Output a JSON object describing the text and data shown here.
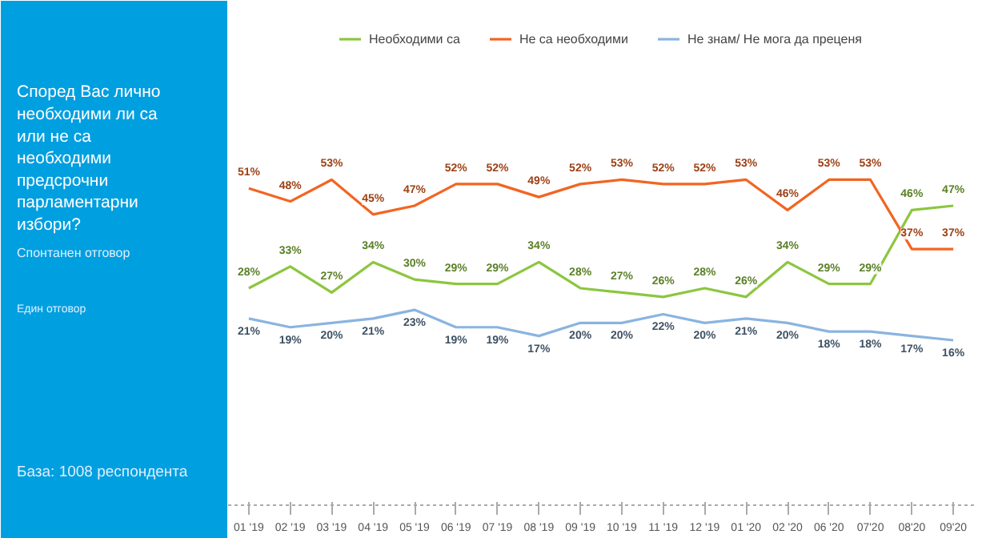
{
  "chart_data": {
    "type": "line",
    "title": "Според Вас лично необходими ли са или не са необходими предсрочни парламентарни избори?",
    "annotations": [
      "Спонтанен отговор",
      "Един отговор",
      "База: 1008 респондента"
    ],
    "categories": [
      "01 '19",
      "02 '19",
      "03 '19",
      "04 '19",
      "05 '19",
      "06 '19",
      "07 '19",
      "08 '19",
      "09 '19",
      "10 '19",
      "11 '19",
      "12 '19",
      "01 '20",
      "02 '20",
      "06 '20",
      "07'20",
      "08'20",
      "09'20"
    ],
    "series": [
      {
        "name": "Необходими са",
        "color": "#8cc63f",
        "values": [
          28,
          33,
          27,
          34,
          30,
          29,
          29,
          34,
          28,
          27,
          26,
          28,
          26,
          34,
          29,
          29,
          46,
          47
        ],
        "value_labels": [
          "28%",
          "33%",
          "27%",
          "34%",
          "30%",
          "29%",
          "29%",
          "34%",
          "28%",
          "27%",
          "26%",
          "28%",
          "26%",
          "34%",
          "29%",
          "29%",
          "46%",
          "47%"
        ]
      },
      {
        "name": "Не са необходими",
        "color": "#f26522",
        "values": [
          51,
          48,
          53,
          45,
          47,
          52,
          52,
          49,
          52,
          53,
          52,
          52,
          53,
          46,
          53,
          53,
          37,
          37
        ],
        "value_labels": [
          "51%",
          "48%",
          "53%",
          "45%",
          "47%",
          "52%",
          "52%",
          "49%",
          "52%",
          "53%",
          "52%",
          "52%",
          "53%",
          "46%",
          "53%",
          "53%",
          "37%",
          "37%"
        ]
      },
      {
        "name": "Не знам/ Не мога да преценя",
        "color": "#8ab4e0",
        "values": [
          21,
          19,
          20,
          21,
          23,
          19,
          19,
          17,
          20,
          20,
          22,
          20,
          21,
          20,
          18,
          18,
          17,
          16
        ],
        "value_labels": [
          "21%",
          "19%",
          "20%",
          "21%",
          "23%",
          "19%",
          "19%",
          "17%",
          "20%",
          "20%",
          "22%",
          "20%",
          "21%",
          "20%",
          "18%",
          "18%",
          "17%",
          "16%"
        ]
      }
    ],
    "legend": "top",
    "grid": false,
    "marker": "none",
    "line_style": "solid"
  }
}
